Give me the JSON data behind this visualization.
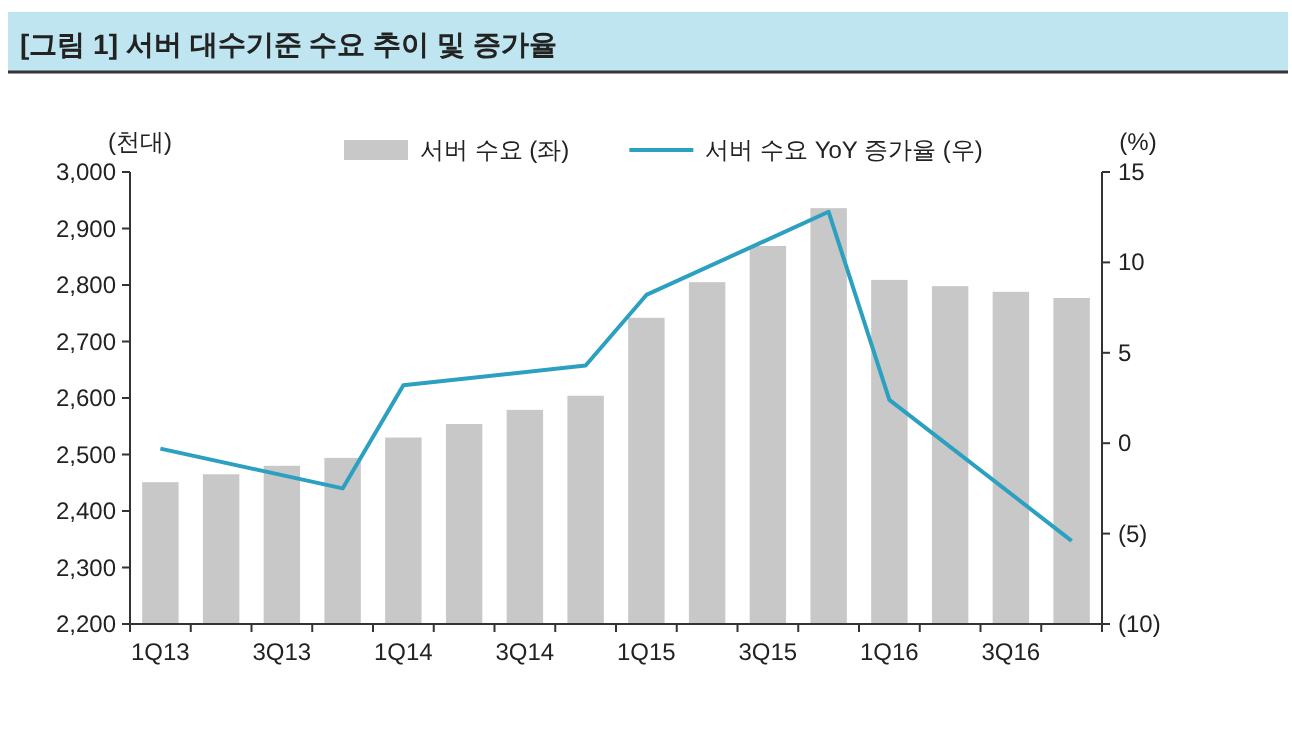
{
  "chart_data": {
    "type": "bar",
    "title": "[그림 1] 서버 대수기준 수요 추이 및 증가율",
    "ylabel": "(천대)",
    "y2label": "(%)",
    "categories": [
      "1Q13",
      null,
      "3Q13",
      null,
      "1Q14",
      null,
      "3Q14",
      null,
      "1Q15",
      null,
      "3Q15",
      null,
      "1Q16",
      null,
      "3Q16",
      null
    ],
    "series": [
      {
        "name": "서버 수요 (좌)",
        "color": "#c8c8c8",
        "values": [
          2451,
          2465,
          2480,
          2494,
          2530,
          2554,
          2579,
          2604,
          2742,
          2805,
          2869,
          2936,
          2809,
          2798,
          2788,
          2777
        ]
      },
      {
        "name": "서버 수요 YoY 증가율 (우)",
        "type": "line",
        "axis": "y2",
        "color": "#2ca0c0",
        "values": [
          -0.3,
          null,
          null,
          -2.5,
          3.2,
          null,
          null,
          4.3,
          8.2,
          null,
          null,
          12.8,
          2.4,
          null,
          null,
          -5.4
        ]
      }
    ],
    "ylim": [
      2200,
      3000
    ],
    "yticks": [
      {
        "value": 2200,
        "label": "2,200"
      },
      {
        "value": 2300,
        "label": "2,300"
      },
      {
        "value": 2400,
        "label": "2,400"
      },
      {
        "value": 2500,
        "label": "2,500"
      },
      {
        "value": 2600,
        "label": "2,600"
      },
      {
        "value": 2700,
        "label": "2,700"
      },
      {
        "value": 2800,
        "label": "2,800"
      },
      {
        "value": 2900,
        "label": "2,900"
      },
      {
        "value": 3000,
        "label": "3,000"
      }
    ],
    "y2lim": [
      -10,
      15
    ],
    "y2ticks": [
      {
        "value": -10,
        "label": "(10)"
      },
      {
        "value": -5,
        "label": "(5)"
      },
      0,
      5,
      10,
      15
    ],
    "legend": "top",
    "grid": false
  }
}
